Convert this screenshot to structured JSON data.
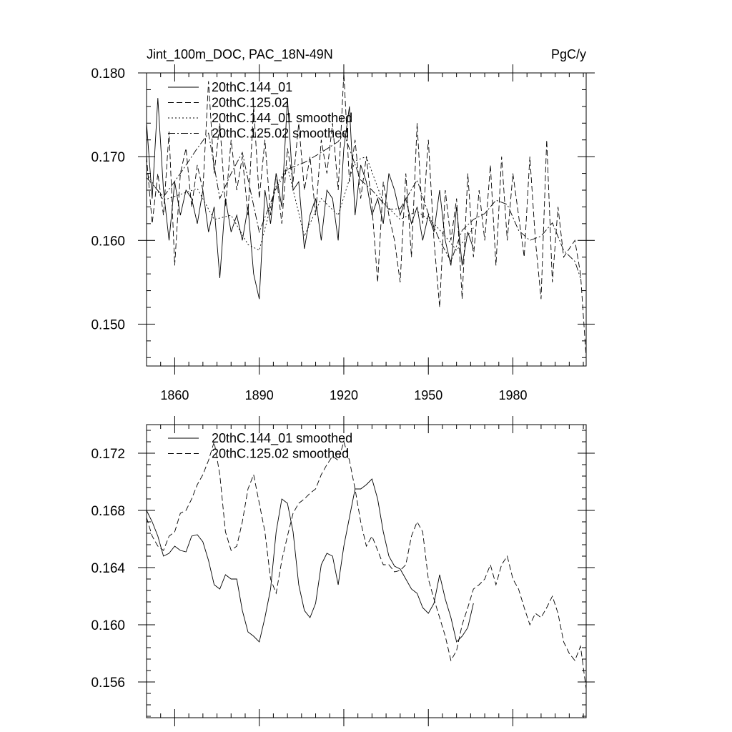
{
  "chart_data": [
    {
      "type": "line",
      "title": "Jint_100m_DOC, PAC_18N-49N",
      "units": "PgC/y",
      "xlabel": "",
      "ylabel": "",
      "xlim": [
        1850,
        2006
      ],
      "ylim": [
        0.145,
        0.18
      ],
      "xticks": [
        1860,
        1890,
        1920,
        1950,
        1980
      ],
      "yticks": [
        0.15,
        0.16,
        0.17,
        0.18
      ],
      "ytick_labels": [
        "0.150",
        "0.160",
        "0.170",
        "0.180"
      ],
      "legend_position": "top-left",
      "series": [
        {
          "name": "20thC.144_01",
          "style": "solid",
          "x": [
            1850,
            1852,
            1854,
            1856,
            1858,
            1860,
            1862,
            1864,
            1866,
            1868,
            1870,
            1872,
            1874,
            1876,
            1878,
            1880,
            1882,
            1884,
            1886,
            1888,
            1890,
            1892,
            1894,
            1896,
            1898,
            1900,
            1902,
            1904,
            1906,
            1908,
            1910,
            1912,
            1914,
            1916,
            1918,
            1920,
            1922,
            1924,
            1926,
            1928,
            1930,
            1932,
            1934,
            1936,
            1938,
            1940,
            1942,
            1944,
            1946,
            1948,
            1950,
            1952,
            1954,
            1956,
            1958,
            1960,
            1962,
            1964,
            1966
          ],
          "y": [
            0.174,
            0.165,
            0.177,
            0.166,
            0.16,
            0.167,
            0.163,
            0.166,
            0.165,
            0.162,
            0.166,
            0.161,
            0.164,
            0.1555,
            0.165,
            0.161,
            0.163,
            0.16,
            0.164,
            0.156,
            0.153,
            0.166,
            0.162,
            0.168,
            0.164,
            0.177,
            0.166,
            0.167,
            0.159,
            0.163,
            0.165,
            0.16,
            0.166,
            0.165,
            0.16,
            0.171,
            0.176,
            0.163,
            0.169,
            0.167,
            0.163,
            0.165,
            0.162,
            0.168,
            0.166,
            0.163,
            0.165,
            0.162,
            0.164,
            0.16,
            0.163,
            0.161,
            0.166,
            0.16,
            0.157,
            0.164,
            0.157,
            0.161,
            0.159
          ]
        },
        {
          "name": "20thC.125.02",
          "style": "dashed",
          "x": [
            1850,
            1852,
            1854,
            1856,
            1858,
            1860,
            1862,
            1864,
            1866,
            1868,
            1870,
            1872,
            1874,
            1876,
            1878,
            1880,
            1882,
            1884,
            1886,
            1888,
            1890,
            1892,
            1894,
            1896,
            1898,
            1900,
            1902,
            1904,
            1906,
            1908,
            1910,
            1912,
            1914,
            1916,
            1918,
            1920,
            1922,
            1924,
            1926,
            1928,
            1930,
            1932,
            1934,
            1936,
            1938,
            1940,
            1942,
            1944,
            1946,
            1948,
            1950,
            1952,
            1954,
            1956,
            1958,
            1960,
            1962,
            1964,
            1966,
            1968,
            1970,
            1972,
            1974,
            1976,
            1978,
            1980,
            1982,
            1984,
            1986,
            1988,
            1990,
            1992,
            1994,
            1996,
            1998,
            2000,
            2002,
            2004,
            2006
          ],
          "y": [
            0.17,
            0.162,
            0.168,
            0.163,
            0.173,
            0.157,
            0.168,
            0.171,
            0.164,
            0.169,
            0.166,
            0.179,
            0.168,
            0.174,
            0.164,
            0.172,
            0.166,
            0.17,
            0.163,
            0.176,
            0.165,
            0.172,
            0.163,
            0.168,
            0.162,
            0.171,
            0.167,
            0.174,
            0.166,
            0.17,
            0.163,
            0.172,
            0.168,
            0.174,
            0.166,
            0.18,
            0.167,
            0.172,
            0.165,
            0.17,
            0.164,
            0.155,
            0.167,
            0.163,
            0.16,
            0.155,
            0.168,
            0.158,
            0.174,
            0.162,
            0.172,
            0.16,
            0.152,
            0.166,
            0.16,
            0.165,
            0.153,
            0.168,
            0.158,
            0.166,
            0.16,
            0.169,
            0.157,
            0.17,
            0.16,
            0.168,
            0.163,
            0.158,
            0.17,
            0.16,
            0.153,
            0.172,
            0.155,
            0.164,
            0.158,
            0.159,
            0.16,
            0.156,
            0.146
          ]
        },
        {
          "name": "20thC.144_01 smoothed",
          "style": "dotted",
          "x": [
            1850,
            1856,
            1862,
            1868,
            1874,
            1880,
            1886,
            1890,
            1896,
            1900,
            1906,
            1912,
            1918,
            1924,
            1928,
            1934,
            1940,
            1946,
            1952,
            1956,
            1960,
            1966
          ],
          "y": [
            0.168,
            0.1648,
            0.1655,
            0.1662,
            0.1625,
            0.163,
            0.1595,
            0.1588,
            0.1665,
            0.1688,
            0.1605,
            0.165,
            0.163,
            0.1695,
            0.17,
            0.1645,
            0.1625,
            0.1635,
            0.162,
            0.1605,
            0.1588,
            0.1615
          ]
        },
        {
          "name": "20thC.125.02 smoothed",
          "style": "dashdot",
          "x": [
            1850,
            1856,
            1862,
            1868,
            1872,
            1876,
            1880,
            1884,
            1890,
            1896,
            1900,
            1906,
            1912,
            1918,
            1920,
            1926,
            1930,
            1936,
            1940,
            1946,
            1950,
            1954,
            1958,
            1962,
            1966,
            1970,
            1974,
            1978,
            1982,
            1986,
            1990,
            1994,
            1998,
            2002,
            2004
          ],
          "y": [
            0.1675,
            0.1652,
            0.168,
            0.171,
            0.1728,
            0.165,
            0.168,
            0.1705,
            0.161,
            0.1662,
            0.1685,
            0.1693,
            0.1705,
            0.1718,
            0.1728,
            0.1672,
            0.166,
            0.1637,
            0.1638,
            0.1672,
            0.1632,
            0.16,
            0.1575,
            0.1612,
            0.1625,
            0.1632,
            0.1648,
            0.1643,
            0.1612,
            0.16,
            0.1605,
            0.1621,
            0.1588,
            0.1575,
            0.1555
          ]
        }
      ]
    },
    {
      "type": "line",
      "title": "",
      "xlabel": "",
      "ylabel": "",
      "xlim": [
        1850,
        2006
      ],
      "ylim": [
        0.1535,
        0.174
      ],
      "xticks": [
        1860,
        1890,
        1920,
        1950,
        1980
      ],
      "yticks": [
        0.156,
        0.16,
        0.164,
        0.168,
        0.172
      ],
      "ytick_labels": [
        "0.156",
        "0.160",
        "0.164",
        "0.168",
        "0.172"
      ],
      "legend_position": "top-left",
      "series": [
        {
          "name": "20thC.144_01 smoothed",
          "style": "solid",
          "x": [
            1850,
            1852,
            1854,
            1856,
            1858,
            1860,
            1862,
            1864,
            1866,
            1868,
            1870,
            1872,
            1874,
            1876,
            1878,
            1880,
            1882,
            1884,
            1886,
            1888,
            1890,
            1892,
            1894,
            1896,
            1898,
            1900,
            1902,
            1904,
            1906,
            1908,
            1910,
            1912,
            1914,
            1916,
            1918,
            1920,
            1922,
            1924,
            1926,
            1928,
            1930,
            1932,
            1934,
            1936,
            1938,
            1940,
            1942,
            1944,
            1946,
            1948,
            1950,
            1952,
            1954,
            1956,
            1958,
            1960,
            1962,
            1964,
            1966
          ],
          "y": [
            0.168,
            0.1672,
            0.1662,
            0.1648,
            0.165,
            0.1655,
            0.1652,
            0.1651,
            0.1662,
            0.1663,
            0.1658,
            0.1645,
            0.1628,
            0.1625,
            0.1635,
            0.1632,
            0.1632,
            0.161,
            0.1595,
            0.1592,
            0.1588,
            0.1605,
            0.1625,
            0.1665,
            0.1688,
            0.1685,
            0.1665,
            0.1628,
            0.161,
            0.1605,
            0.1615,
            0.1642,
            0.165,
            0.1648,
            0.1628,
            0.1655,
            0.1675,
            0.1695,
            0.1695,
            0.1698,
            0.1702,
            0.1688,
            0.1665,
            0.1648,
            0.1641,
            0.1639,
            0.1632,
            0.1625,
            0.1622,
            0.1612,
            0.1608,
            0.1615,
            0.1635,
            0.1618,
            0.1605,
            0.1588,
            0.1592,
            0.1598,
            0.1615
          ]
        },
        {
          "name": "20thC.125.02 smoothed",
          "style": "dashed",
          "x": [
            1850,
            1852,
            1854,
            1856,
            1858,
            1860,
            1862,
            1864,
            1866,
            1868,
            1870,
            1872,
            1874,
            1876,
            1878,
            1880,
            1882,
            1884,
            1886,
            1888,
            1890,
            1892,
            1894,
            1896,
            1898,
            1900,
            1902,
            1904,
            1906,
            1908,
            1910,
            1912,
            1914,
            1916,
            1918,
            1920,
            1922,
            1924,
            1926,
            1928,
            1930,
            1932,
            1934,
            1936,
            1938,
            1940,
            1942,
            1944,
            1946,
            1948,
            1950,
            1952,
            1954,
            1956,
            1958,
            1960,
            1962,
            1964,
            1966,
            1968,
            1970,
            1972,
            1974,
            1976,
            1978,
            1980,
            1982,
            1984,
            1986,
            1988,
            1990,
            1992,
            1994,
            1996,
            1998,
            2000,
            2002,
            2004,
            2006
          ],
          "y": [
            0.1675,
            0.1662,
            0.1655,
            0.1652,
            0.1662,
            0.1665,
            0.1678,
            0.168,
            0.1688,
            0.1698,
            0.1705,
            0.1715,
            0.1728,
            0.1705,
            0.1665,
            0.1652,
            0.1655,
            0.1672,
            0.1695,
            0.1705,
            0.1685,
            0.1665,
            0.1632,
            0.1622,
            0.1645,
            0.1662,
            0.1678,
            0.1685,
            0.1688,
            0.1692,
            0.1695,
            0.1705,
            0.1712,
            0.1718,
            0.1715,
            0.1728,
            0.1715,
            0.1695,
            0.1672,
            0.1655,
            0.1662,
            0.1652,
            0.1642,
            0.1642,
            0.1637,
            0.1638,
            0.1642,
            0.1662,
            0.1672,
            0.1665,
            0.1632,
            0.1618,
            0.1605,
            0.1592,
            0.1575,
            0.1582,
            0.16,
            0.1612,
            0.1625,
            0.1628,
            0.1632,
            0.1642,
            0.1628,
            0.1642,
            0.1648,
            0.1632,
            0.1625,
            0.1612,
            0.16,
            0.1608,
            0.1605,
            0.1612,
            0.162,
            0.1608,
            0.1588,
            0.158,
            0.1575,
            0.1585,
            0.1555
          ]
        }
      ]
    }
  ]
}
